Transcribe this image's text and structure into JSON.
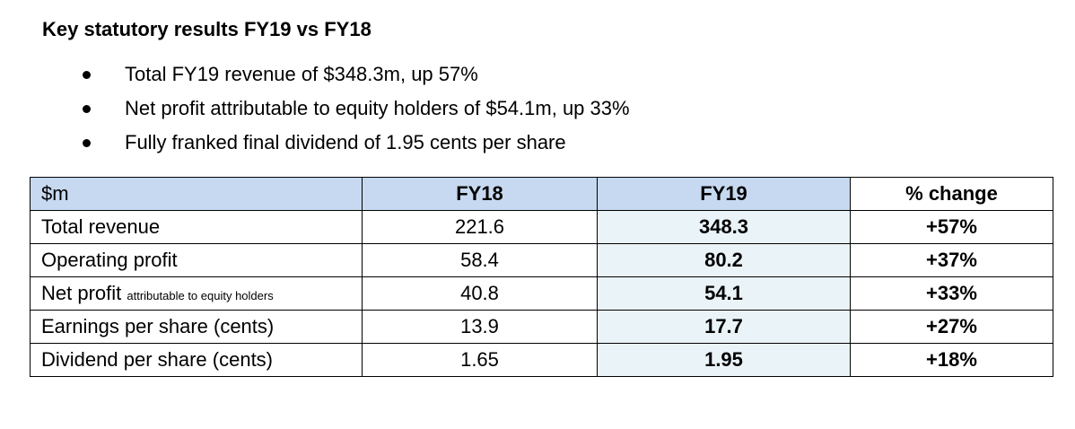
{
  "title": "Key statutory results FY19 vs FY18",
  "bullets": [
    "Total FY19 revenue of $348.3m, up 57%",
    "Net profit attributable to equity holders of $54.1m, up 33%",
    "Fully franked final dividend of 1.95 cents per share"
  ],
  "table": {
    "headers": [
      "$m",
      "FY18",
      "FY19",
      "% change"
    ],
    "rows": [
      {
        "label": "Total revenue",
        "note": "",
        "fy18": "221.6",
        "fy19": "348.3",
        "change": "+57%"
      },
      {
        "label": "Operating profit",
        "note": "",
        "fy18": "58.4",
        "fy19": "80.2",
        "change": "+37%"
      },
      {
        "label": "Net profit",
        "note": "attributable to equity holders",
        "fy18": "40.8",
        "fy19": "54.1",
        "change": "+33%"
      },
      {
        "label": "Earnings per share (cents)",
        "note": "",
        "fy18": "13.9",
        "fy19": "17.7",
        "change": "+27%"
      },
      {
        "label": "Dividend per share (cents)",
        "note": "",
        "fy18": "1.65",
        "fy19": "1.95",
        "change": "+18%"
      }
    ]
  },
  "colors": {
    "header_fill": "#c6d9f0",
    "fy19_fill": "#eaf3f8"
  }
}
